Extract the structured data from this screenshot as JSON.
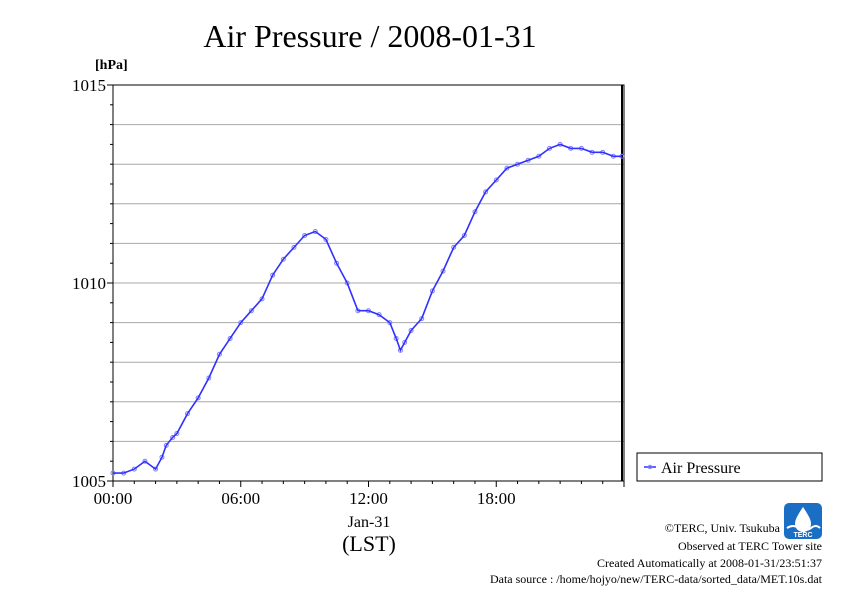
{
  "chart_data": {
    "type": "line",
    "title": "Air Pressure / 2008-01-31",
    "y_unit": "[hPa]",
    "ylim": [
      1005,
      1015
    ],
    "y_ticks": [
      "1005",
      "1010",
      "1015"
    ],
    "x_ticks": [
      "00:00",
      "06:00",
      "12:00",
      "18:00"
    ],
    "x_date_label": "Jan-31",
    "xlabel": "(LST)",
    "xlim_hours": [
      0,
      24
    ],
    "grid": true,
    "legend": "bottom-right",
    "colors": {
      "series": "#3030ff",
      "points": "#8080ff"
    },
    "series": [
      {
        "name": "Air Pressure",
        "x_hours": [
          0.0,
          0.5,
          1.0,
          1.5,
          2.0,
          2.3,
          2.5,
          2.8,
          3.0,
          3.5,
          4.0,
          4.5,
          5.0,
          5.5,
          6.0,
          6.5,
          7.0,
          7.5,
          8.0,
          8.5,
          9.0,
          9.5,
          10.0,
          10.5,
          11.0,
          11.5,
          12.0,
          12.5,
          13.0,
          13.3,
          13.5,
          13.7,
          14.0,
          14.5,
          15.0,
          15.5,
          16.0,
          16.5,
          17.0,
          17.5,
          18.0,
          18.5,
          19.0,
          19.5,
          20.0,
          20.5,
          21.0,
          21.5,
          22.0,
          22.5,
          23.0,
          23.5,
          23.9
        ],
        "values": [
          1005.2,
          1005.2,
          1005.3,
          1005.5,
          1005.3,
          1005.6,
          1005.9,
          1006.1,
          1006.2,
          1006.7,
          1007.1,
          1007.6,
          1008.2,
          1008.6,
          1009.0,
          1009.3,
          1009.6,
          1010.2,
          1010.6,
          1010.9,
          1011.2,
          1011.3,
          1011.1,
          1010.5,
          1010.0,
          1009.3,
          1009.3,
          1009.2,
          1009.0,
          1008.6,
          1008.3,
          1008.5,
          1008.8,
          1009.1,
          1009.8,
          1010.3,
          1010.9,
          1011.2,
          1011.8,
          1012.3,
          1012.6,
          1012.9,
          1013.0,
          1013.1,
          1013.2,
          1013.4,
          1013.5,
          1013.4,
          1013.4,
          1013.3,
          1013.3,
          1013.2,
          1013.2
        ]
      }
    ]
  },
  "legend": {
    "label": "Air Pressure"
  },
  "footer": {
    "copyright": "©TERC, Univ. Tsukuba",
    "observed": "Observed at TERC Tower site",
    "created": "Created Automatically at 2008-01-31/23:51:37",
    "source": "Data source : /home/hojyo/new/TERC-data/sorted_data/MET.10s.dat",
    "logo_text": "TERC"
  }
}
